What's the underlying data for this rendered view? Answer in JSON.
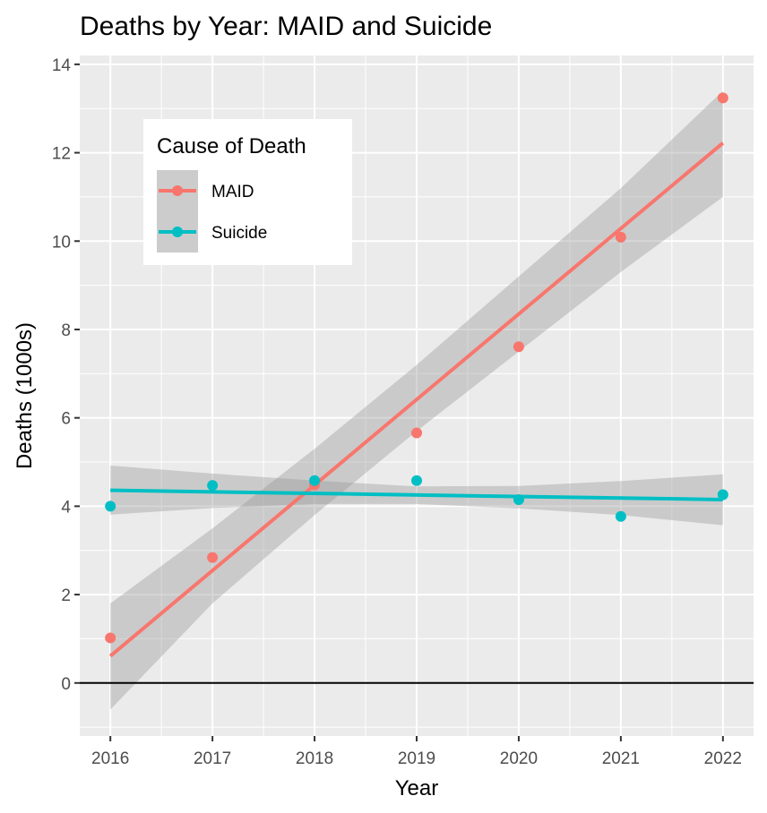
{
  "chart_data": {
    "type": "scatter",
    "title": "Deaths by Year: MAID and Suicide",
    "xlabel": "Year",
    "ylabel": "Deaths (1000s)",
    "xlim": [
      2015.7,
      2022.3
    ],
    "ylim": [
      -1.2,
      14.2
    ],
    "x_ticks": [
      2016,
      2017,
      2018,
      2019,
      2020,
      2021,
      2022
    ],
    "y_ticks": [
      0,
      2,
      4,
      6,
      8,
      10,
      12,
      14
    ],
    "x_minor_ticks": [
      2016.5,
      2017.5,
      2018.5,
      2019.5,
      2020.5,
      2021.5
    ],
    "y_minor_ticks": [
      -1,
      1,
      3,
      5,
      7,
      9,
      11,
      13
    ],
    "grid": true,
    "panel_background": "#ebebeb",
    "reference_line": {
      "y": 0,
      "color": "#000000"
    },
    "legend": {
      "title": "Cause of Death",
      "placement": "top-left",
      "entries": [
        "MAID",
        "Suicide"
      ]
    },
    "series": [
      {
        "name": "MAID",
        "color": "#f8766d",
        "x": [
          2016,
          2017,
          2018,
          2019,
          2020,
          2021,
          2022
        ],
        "y": [
          1.02,
          2.84,
          4.48,
          5.66,
          7.61,
          10.09,
          13.24
        ],
        "trend": {
          "method": "linear",
          "x": [
            2016,
            2022
          ],
          "y": [
            0.61,
            12.22
          ],
          "band": {
            "x": [
              2016,
              2017,
              2018,
              2019,
              2020,
              2021,
              2022
            ],
            "lower": [
              -0.6,
              1.8,
              3.8,
              5.7,
              7.5,
              9.3,
              11.0
            ],
            "upper": [
              1.8,
              3.5,
              5.3,
              7.2,
              9.2,
              11.2,
              13.4
            ]
          }
        }
      },
      {
        "name": "Suicide",
        "color": "#00bfc4",
        "x": [
          2016,
          2017,
          2018,
          2019,
          2020,
          2021,
          2022
        ],
        "y": [
          4.0,
          4.47,
          4.58,
          4.58,
          4.15,
          3.77,
          4.26
        ],
        "trend": {
          "method": "linear",
          "x": [
            2016,
            2022
          ],
          "y": [
            4.36,
            4.15
          ],
          "band": {
            "x": [
              2016,
              2017,
              2018,
              2019,
              2020,
              2021,
              2022
            ],
            "lower": [
              3.81,
              3.96,
              4.05,
              4.05,
              3.95,
              3.8,
              3.57
            ],
            "upper": [
              4.92,
              4.74,
              4.58,
              4.45,
              4.46,
              4.57,
              4.72
            ]
          }
        }
      }
    ]
  }
}
